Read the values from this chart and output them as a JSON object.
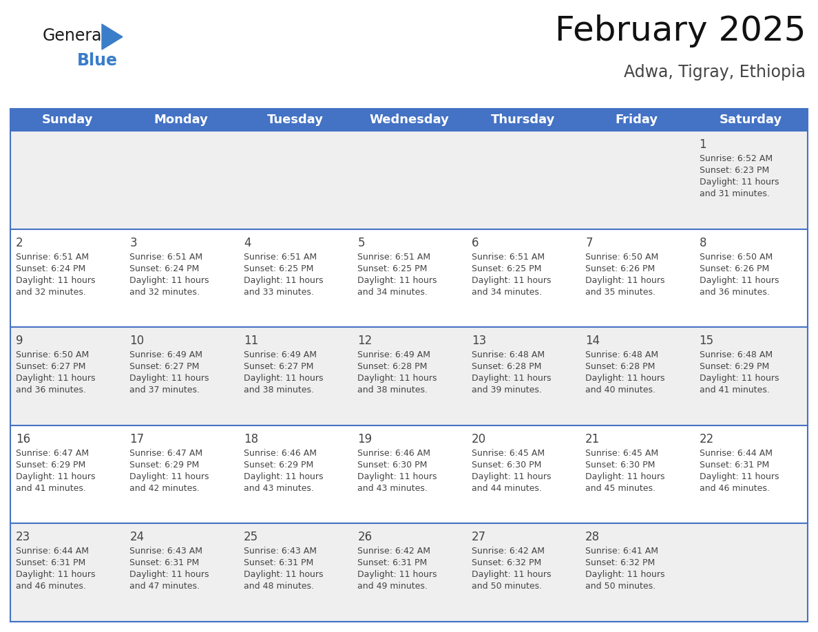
{
  "title": "February 2025",
  "subtitle": "Adwa, Tigray, Ethiopia",
  "header_color": "#4472C4",
  "header_text_color": "#FFFFFF",
  "background_color": "#FFFFFF",
  "row_color_even": "#EFEFEF",
  "row_color_odd": "#FFFFFF",
  "border_color": "#4472C4",
  "text_color": "#444444",
  "days_of_week": [
    "Sunday",
    "Monday",
    "Tuesday",
    "Wednesday",
    "Thursday",
    "Friday",
    "Saturday"
  ],
  "weeks": [
    [
      {
        "day": null,
        "sunrise": null,
        "sunset": null,
        "daylight_line1": null,
        "daylight_line2": null
      },
      {
        "day": null,
        "sunrise": null,
        "sunset": null,
        "daylight_line1": null,
        "daylight_line2": null
      },
      {
        "day": null,
        "sunrise": null,
        "sunset": null,
        "daylight_line1": null,
        "daylight_line2": null
      },
      {
        "day": null,
        "sunrise": null,
        "sunset": null,
        "daylight_line1": null,
        "daylight_line2": null
      },
      {
        "day": null,
        "sunrise": null,
        "sunset": null,
        "daylight_line1": null,
        "daylight_line2": null
      },
      {
        "day": null,
        "sunrise": null,
        "sunset": null,
        "daylight_line1": null,
        "daylight_line2": null
      },
      {
        "day": "1",
        "sunrise": "Sunrise: 6:52 AM",
        "sunset": "Sunset: 6:23 PM",
        "daylight_line1": "Daylight: 11 hours",
        "daylight_line2": "and 31 minutes."
      }
    ],
    [
      {
        "day": "2",
        "sunrise": "Sunrise: 6:51 AM",
        "sunset": "Sunset: 6:24 PM",
        "daylight_line1": "Daylight: 11 hours",
        "daylight_line2": "and 32 minutes."
      },
      {
        "day": "3",
        "sunrise": "Sunrise: 6:51 AM",
        "sunset": "Sunset: 6:24 PM",
        "daylight_line1": "Daylight: 11 hours",
        "daylight_line2": "and 32 minutes."
      },
      {
        "day": "4",
        "sunrise": "Sunrise: 6:51 AM",
        "sunset": "Sunset: 6:25 PM",
        "daylight_line1": "Daylight: 11 hours",
        "daylight_line2": "and 33 minutes."
      },
      {
        "day": "5",
        "sunrise": "Sunrise: 6:51 AM",
        "sunset": "Sunset: 6:25 PM",
        "daylight_line1": "Daylight: 11 hours",
        "daylight_line2": "and 34 minutes."
      },
      {
        "day": "6",
        "sunrise": "Sunrise: 6:51 AM",
        "sunset": "Sunset: 6:25 PM",
        "daylight_line1": "Daylight: 11 hours",
        "daylight_line2": "and 34 minutes."
      },
      {
        "day": "7",
        "sunrise": "Sunrise: 6:50 AM",
        "sunset": "Sunset: 6:26 PM",
        "daylight_line1": "Daylight: 11 hours",
        "daylight_line2": "and 35 minutes."
      },
      {
        "day": "8",
        "sunrise": "Sunrise: 6:50 AM",
        "sunset": "Sunset: 6:26 PM",
        "daylight_line1": "Daylight: 11 hours",
        "daylight_line2": "and 36 minutes."
      }
    ],
    [
      {
        "day": "9",
        "sunrise": "Sunrise: 6:50 AM",
        "sunset": "Sunset: 6:27 PM",
        "daylight_line1": "Daylight: 11 hours",
        "daylight_line2": "and 36 minutes."
      },
      {
        "day": "10",
        "sunrise": "Sunrise: 6:49 AM",
        "sunset": "Sunset: 6:27 PM",
        "daylight_line1": "Daylight: 11 hours",
        "daylight_line2": "and 37 minutes."
      },
      {
        "day": "11",
        "sunrise": "Sunrise: 6:49 AM",
        "sunset": "Sunset: 6:27 PM",
        "daylight_line1": "Daylight: 11 hours",
        "daylight_line2": "and 38 minutes."
      },
      {
        "day": "12",
        "sunrise": "Sunrise: 6:49 AM",
        "sunset": "Sunset: 6:28 PM",
        "daylight_line1": "Daylight: 11 hours",
        "daylight_line2": "and 38 minutes."
      },
      {
        "day": "13",
        "sunrise": "Sunrise: 6:48 AM",
        "sunset": "Sunset: 6:28 PM",
        "daylight_line1": "Daylight: 11 hours",
        "daylight_line2": "and 39 minutes."
      },
      {
        "day": "14",
        "sunrise": "Sunrise: 6:48 AM",
        "sunset": "Sunset: 6:28 PM",
        "daylight_line1": "Daylight: 11 hours",
        "daylight_line2": "and 40 minutes."
      },
      {
        "day": "15",
        "sunrise": "Sunrise: 6:48 AM",
        "sunset": "Sunset: 6:29 PM",
        "daylight_line1": "Daylight: 11 hours",
        "daylight_line2": "and 41 minutes."
      }
    ],
    [
      {
        "day": "16",
        "sunrise": "Sunrise: 6:47 AM",
        "sunset": "Sunset: 6:29 PM",
        "daylight_line1": "Daylight: 11 hours",
        "daylight_line2": "and 41 minutes."
      },
      {
        "day": "17",
        "sunrise": "Sunrise: 6:47 AM",
        "sunset": "Sunset: 6:29 PM",
        "daylight_line1": "Daylight: 11 hours",
        "daylight_line2": "and 42 minutes."
      },
      {
        "day": "18",
        "sunrise": "Sunrise: 6:46 AM",
        "sunset": "Sunset: 6:29 PM",
        "daylight_line1": "Daylight: 11 hours",
        "daylight_line2": "and 43 minutes."
      },
      {
        "day": "19",
        "sunrise": "Sunrise: 6:46 AM",
        "sunset": "Sunset: 6:30 PM",
        "daylight_line1": "Daylight: 11 hours",
        "daylight_line2": "and 43 minutes."
      },
      {
        "day": "20",
        "sunrise": "Sunrise: 6:45 AM",
        "sunset": "Sunset: 6:30 PM",
        "daylight_line1": "Daylight: 11 hours",
        "daylight_line2": "and 44 minutes."
      },
      {
        "day": "21",
        "sunrise": "Sunrise: 6:45 AM",
        "sunset": "Sunset: 6:30 PM",
        "daylight_line1": "Daylight: 11 hours",
        "daylight_line2": "and 45 minutes."
      },
      {
        "day": "22",
        "sunrise": "Sunrise: 6:44 AM",
        "sunset": "Sunset: 6:31 PM",
        "daylight_line1": "Daylight: 11 hours",
        "daylight_line2": "and 46 minutes."
      }
    ],
    [
      {
        "day": "23",
        "sunrise": "Sunrise: 6:44 AM",
        "sunset": "Sunset: 6:31 PM",
        "daylight_line1": "Daylight: 11 hours",
        "daylight_line2": "and 46 minutes."
      },
      {
        "day": "24",
        "sunrise": "Sunrise: 6:43 AM",
        "sunset": "Sunset: 6:31 PM",
        "daylight_line1": "Daylight: 11 hours",
        "daylight_line2": "and 47 minutes."
      },
      {
        "day": "25",
        "sunrise": "Sunrise: 6:43 AM",
        "sunset": "Sunset: 6:31 PM",
        "daylight_line1": "Daylight: 11 hours",
        "daylight_line2": "and 48 minutes."
      },
      {
        "day": "26",
        "sunrise": "Sunrise: 6:42 AM",
        "sunset": "Sunset: 6:31 PM",
        "daylight_line1": "Daylight: 11 hours",
        "daylight_line2": "and 49 minutes."
      },
      {
        "day": "27",
        "sunrise": "Sunrise: 6:42 AM",
        "sunset": "Sunset: 6:32 PM",
        "daylight_line1": "Daylight: 11 hours",
        "daylight_line2": "and 50 minutes."
      },
      {
        "day": "28",
        "sunrise": "Sunrise: 6:41 AM",
        "sunset": "Sunset: 6:32 PM",
        "daylight_line1": "Daylight: 11 hours",
        "daylight_line2": "and 50 minutes."
      },
      {
        "day": null,
        "sunrise": null,
        "sunset": null,
        "daylight_line1": null,
        "daylight_line2": null
      }
    ]
  ],
  "logo_color_general": "#1a1a1a",
  "logo_color_blue": "#3A7DC9",
  "logo_color_triangle": "#3A7DC9",
  "title_fontsize": 36,
  "subtitle_fontsize": 17,
  "header_fontsize": 13,
  "day_num_fontsize": 12,
  "cell_text_fontsize": 9
}
